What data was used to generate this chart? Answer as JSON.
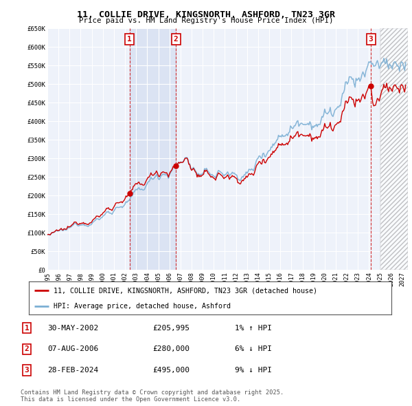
{
  "title": "11, COLLIE DRIVE, KINGSNORTH, ASHFORD, TN23 3GR",
  "subtitle": "Price paid vs. HM Land Registry's House Price Index (HPI)",
  "ylim": [
    0,
    650000
  ],
  "xlim_start": 1995.0,
  "xlim_end": 2027.5,
  "yticks": [
    0,
    50000,
    100000,
    150000,
    200000,
    250000,
    300000,
    350000,
    400000,
    450000,
    500000,
    550000,
    600000,
    650000
  ],
  "ytick_labels": [
    "£0",
    "£50K",
    "£100K",
    "£150K",
    "£200K",
    "£250K",
    "£300K",
    "£350K",
    "£400K",
    "£450K",
    "£500K",
    "£550K",
    "£600K",
    "£650K"
  ],
  "xticks": [
    1995,
    1996,
    1997,
    1998,
    1999,
    2000,
    2001,
    2002,
    2003,
    2004,
    2005,
    2006,
    2007,
    2008,
    2009,
    2010,
    2011,
    2012,
    2013,
    2014,
    2015,
    2016,
    2017,
    2018,
    2019,
    2020,
    2021,
    2022,
    2023,
    2024,
    2025,
    2026,
    2027
  ],
  "bg_color": "#ffffff",
  "plot_bg_color": "#eef2fa",
  "grid_color": "#ffffff",
  "hpi_line_color": "#7bafd4",
  "price_line_color": "#cc0000",
  "sale1_x": 2002.41,
  "sale1_y": 205995,
  "sale1_label": "1",
  "sale1_date": "30-MAY-2002",
  "sale1_price": "£205,995",
  "sale1_hpi": "1% ↑ HPI",
  "sale2_x": 2006.59,
  "sale2_y": 280000,
  "sale2_label": "2",
  "sale2_date": "07-AUG-2006",
  "sale2_price": "£280,000",
  "sale2_hpi": "6% ↓ HPI",
  "sale3_x": 2024.16,
  "sale3_y": 495000,
  "sale3_label": "3",
  "sale3_date": "28-FEB-2024",
  "sale3_price": "£495,000",
  "sale3_hpi": "9% ↓ HPI",
  "legend_line1": "11, COLLIE DRIVE, KINGSNORTH, ASHFORD, TN23 3GR (detached house)",
  "legend_line2": "HPI: Average price, detached house, Ashford",
  "footnote": "Contains HM Land Registry data © Crown copyright and database right 2025.\nThis data is licensed under the Open Government Licence v3.0.",
  "hatch_start": 2025.0
}
